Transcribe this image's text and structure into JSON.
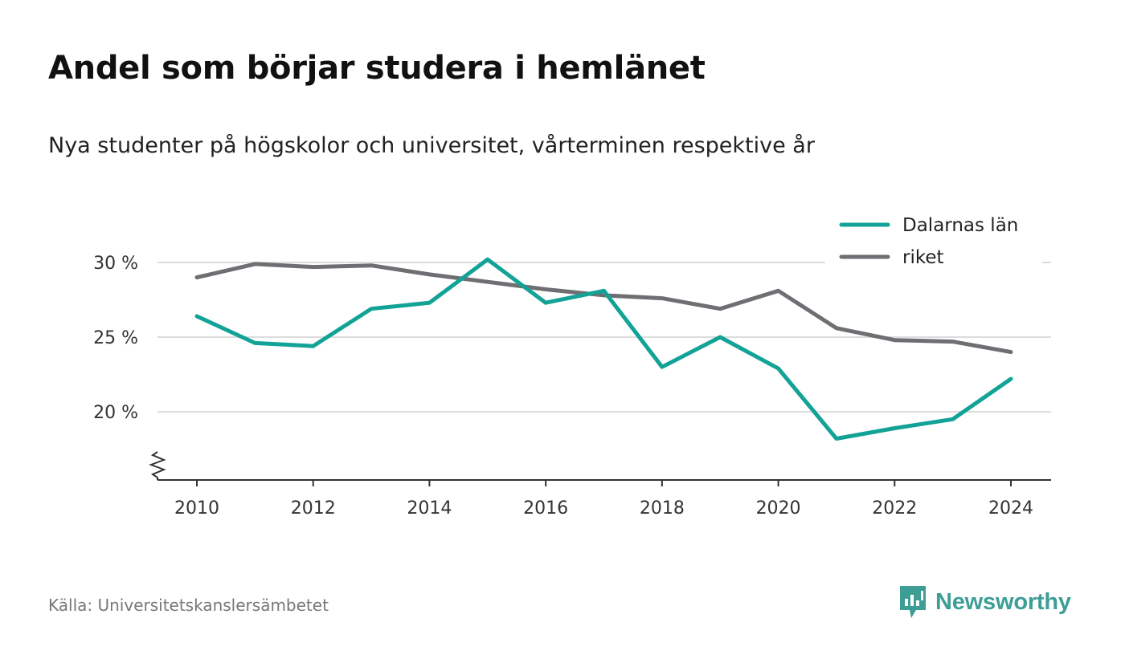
{
  "title": "Andel som börjar studera i hemlänet",
  "subtitle": "Nya studenter på högskolor och universitet, vårterminen respektive år",
  "source": "Källa: Universitetskanslersämbetet",
  "brand": {
    "name": "Newsworthy",
    "icon": "newsworthy-logo-icon",
    "color": "#3d9e95"
  },
  "chart_data": {
    "type": "line",
    "title": "Andel som börjar studera i hemlänet",
    "subtitle": "Nya studenter på högskolor och universitet, vårterminen respektive år",
    "x": [
      2010,
      2011,
      2012,
      2013,
      2014,
      2015,
      2016,
      2017,
      2018,
      2019,
      2020,
      2021,
      2022,
      2023,
      2024
    ],
    "x_ticks": [
      2010,
      2012,
      2014,
      2016,
      2018,
      2020,
      2022,
      2024
    ],
    "y_ticks": [
      20,
      25,
      30
    ],
    "y_tick_suffix": " %",
    "ylim": [
      15.5,
      31.5
    ],
    "y_axis_break": true,
    "grid": "horizontal",
    "legend_position": "top-right",
    "series": [
      {
        "name": "Dalarnas län",
        "color": "#12a396",
        "values": [
          26.4,
          24.6,
          24.4,
          26.9,
          27.3,
          30.2,
          27.3,
          28.1,
          23.0,
          25.0,
          22.9,
          18.2,
          18.9,
          19.5,
          22.2
        ]
      },
      {
        "name": "riket",
        "color": "#6e6e73",
        "values": [
          29.0,
          29.9,
          29.7,
          29.8,
          29.2,
          28.7,
          28.2,
          27.8,
          27.6,
          26.9,
          28.1,
          25.6,
          24.8,
          24.7,
          24.0
        ]
      }
    ]
  }
}
